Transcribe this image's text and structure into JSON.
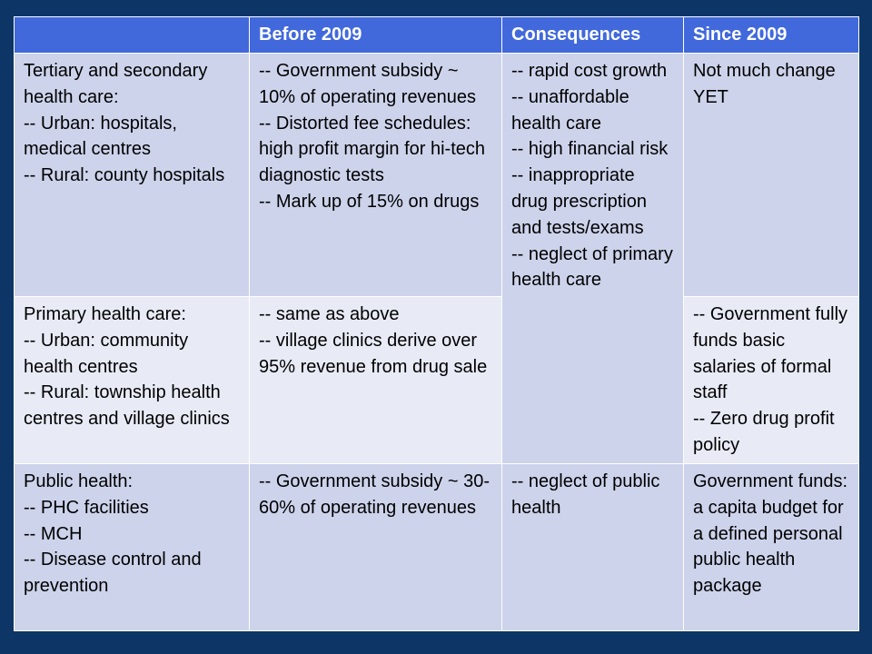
{
  "table": {
    "headers": [
      "",
      "Before 2009",
      "Consequences",
      "Since 2009"
    ],
    "rows": [
      {
        "category": [
          "Tertiary and secondary health care:",
          "-- Urban: hospitals, medical centres",
          "-- Rural: county hospitals"
        ],
        "before": [
          "-- Government subsidy ~ 10% of operating revenues",
          "-- Distorted fee schedules: high profit margin for hi-tech diagnostic tests",
          "-- Mark up of 15% on drugs"
        ],
        "since": [
          "Not much change YET"
        ]
      },
      {
        "category": [
          "Primary health care:",
          "-- Urban: community health centres",
          "-- Rural: township health centres and village clinics"
        ],
        "before": [
          "-- same as above",
          "-- village clinics derive over 95% revenue from drug sale"
        ],
        "since": [
          "-- Government fully funds basic salaries of formal staff",
          "-- Zero drug profit policy"
        ]
      },
      {
        "category": [
          "Public health:",
          "-- PHC facilities",
          "-- MCH",
          "-- Disease control and prevention"
        ],
        "before": [
          "-- Government subsidy ~ 30-60% of operating revenues"
        ],
        "consequences": [
          "-- neglect of public health"
        ],
        "since": [
          "Government funds: a capita budget for a defined personal public health package"
        ]
      }
    ],
    "shared_consequences": [
      "-- rapid cost growth",
      "-- unaffordable health care",
      "-- high financial risk",
      "-- inappropriate drug prescription and tests/exams",
      "-- neglect of primary health care"
    ]
  },
  "colors": {
    "background": "#0d3566",
    "header_fill": "#4169dc",
    "cell_dark": "#cdd3eb",
    "cell_light": "#e8ebf6",
    "border": "#ffffff"
  }
}
